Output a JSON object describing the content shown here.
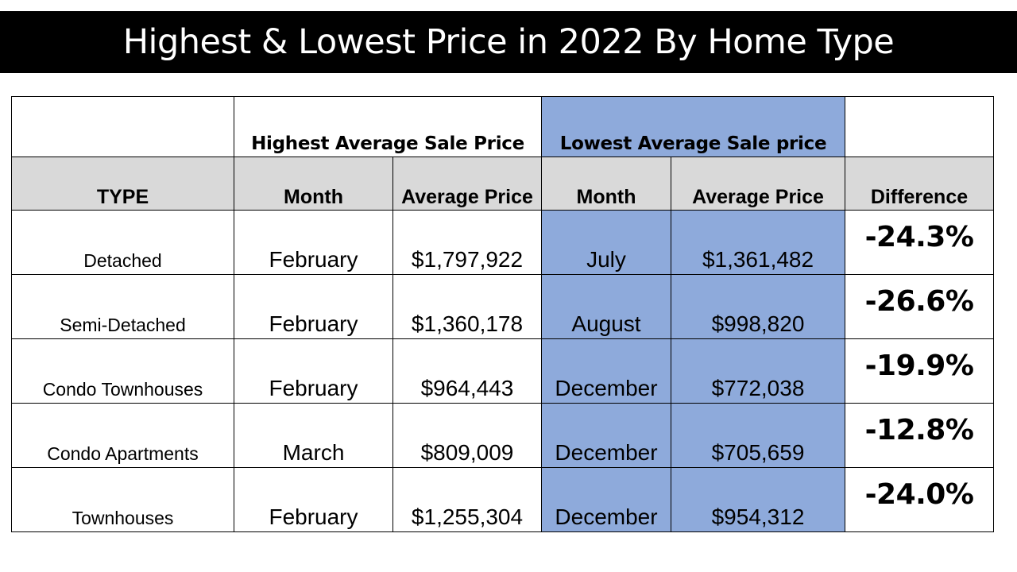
{
  "title": "Highest & Lowest Price in 2022 By Home Type",
  "colors": {
    "title_bar": "#000000",
    "header_gray": "#d9d9d9",
    "lowest_highlight": "#8eaadb"
  },
  "table": {
    "groups": {
      "highest": "Highest Average Sale Price",
      "lowest": "Lowest Average Sale price"
    },
    "columns": [
      "TYPE",
      "Month",
      "Average Price",
      "Month",
      "Average Price",
      "Difference"
    ],
    "rows": [
      {
        "type": "Detached",
        "high_month": "February",
        "high_price": "$1,797,922",
        "low_month": "July",
        "low_price": "$1,361,482",
        "difference": "-24.3%"
      },
      {
        "type": "Semi-Detached",
        "high_month": "February",
        "high_price": "$1,360,178",
        "low_month": "August",
        "low_price": "$998,820",
        "difference": "-26.6%"
      },
      {
        "type": "Condo Townhouses",
        "high_month": "February",
        "high_price": "$964,443",
        "low_month": "December",
        "low_price": "$772,038",
        "difference": "-19.9%"
      },
      {
        "type": "Condo Apartments",
        "high_month": "March",
        "high_price": "$809,009",
        "low_month": "December",
        "low_price": "$705,659",
        "difference": "-12.8%"
      },
      {
        "type": "Townhouses",
        "high_month": "February",
        "high_price": "$1,255,304",
        "low_month": "December",
        "low_price": "$954,312",
        "difference": "-24.0%"
      }
    ]
  }
}
